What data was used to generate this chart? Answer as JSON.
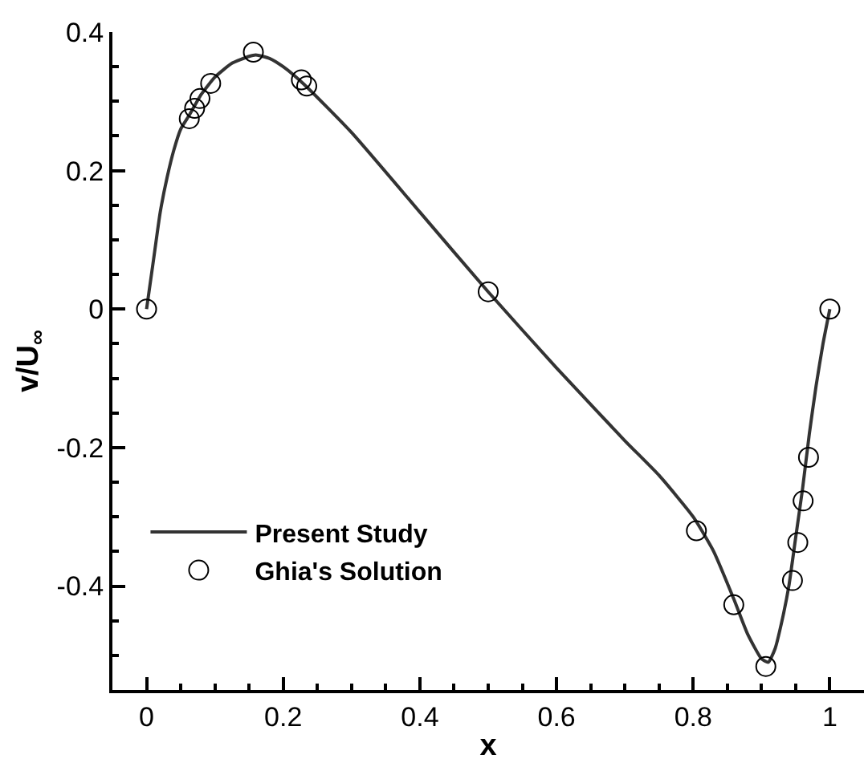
{
  "chart_data": {
    "type": "line",
    "xlabel": "x",
    "ylabel": "v/U$_{∞}$",
    "xlim": [
      -0.05,
      1.05
    ],
    "xticks": [
      0,
      0.2,
      0.4,
      0.6,
      0.8,
      1
    ],
    "ylim": [
      -0.55,
      0.4
    ],
    "yticks": [
      -0.4,
      -0.2,
      0,
      0.2,
      0.4
    ],
    "legend": "bottom left",
    "series": [
      {
        "name": "Present Study",
        "color": "#333333",
        "marker": "none",
        "line_style": "solid",
        "x": [
          0,
          0.01,
          0.02,
          0.03,
          0.04,
          0.05,
          0.0625,
          0.08,
          0.1,
          0.125,
          0.15,
          0.16,
          0.18,
          0.2,
          0.23,
          0.3,
          0.4,
          0.5,
          0.6,
          0.7,
          0.75,
          0.8,
          0.83,
          0.86,
          0.88,
          0.9,
          0.91,
          0.92,
          0.93,
          0.94,
          0.95,
          0.96,
          0.97,
          0.98,
          0.99,
          1
        ],
        "values": [
          0,
          0.07,
          0.14,
          0.19,
          0.23,
          0.26,
          0.28,
          0.31,
          0.335,
          0.355,
          0.365,
          0.367,
          0.362,
          0.35,
          0.325,
          0.255,
          0.14,
          0.025,
          -0.085,
          -0.19,
          -0.24,
          -0.3,
          -0.35,
          -0.42,
          -0.47,
          -0.505,
          -0.51,
          -0.49,
          -0.45,
          -0.4,
          -0.33,
          -0.26,
          -0.18,
          -0.11,
          -0.05,
          0
        ]
      },
      {
        "name": "Ghia's Solution",
        "type": "scatter",
        "color": "#000000",
        "marker": "circle",
        "x": [
          0,
          0.0625,
          0.0703,
          0.0781,
          0.0938,
          0.1563,
          0.2266,
          0.2344,
          0.5,
          0.8047,
          0.8594,
          0.9063,
          0.9453,
          0.9531,
          0.9609,
          0.9688,
          1
        ],
        "values": [
          0,
          0.275,
          0.29,
          0.304,
          0.326,
          0.371,
          0.331,
          0.322,
          0.025,
          -0.32,
          -0.427,
          -0.516,
          -0.392,
          -0.337,
          -0.277,
          -0.214,
          0
        ]
      }
    ]
  }
}
